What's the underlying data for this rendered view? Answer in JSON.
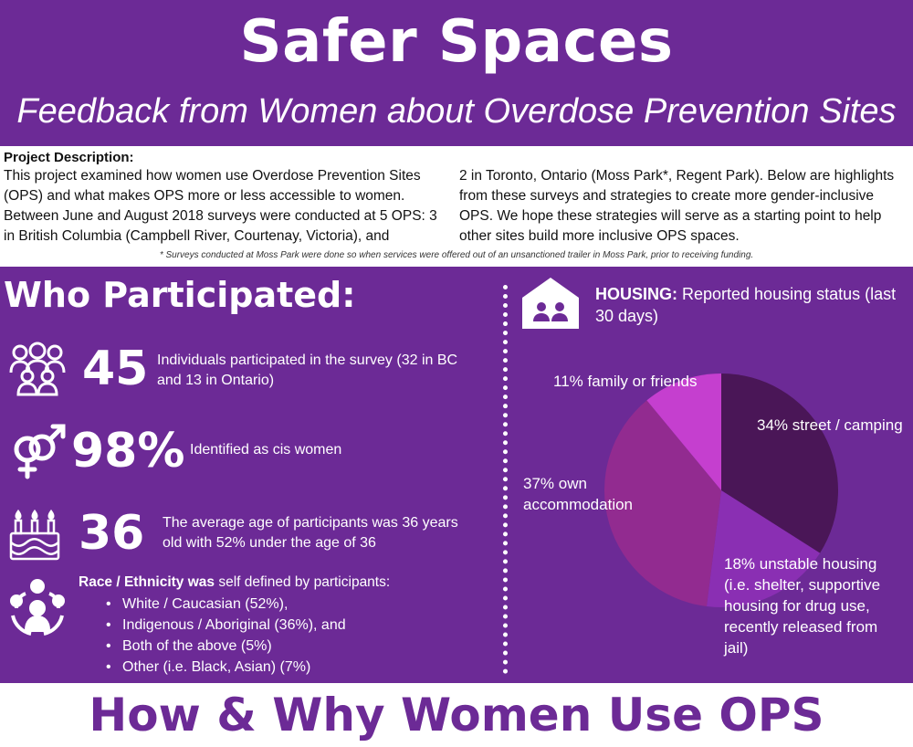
{
  "header": {
    "title": "Safer Spaces",
    "subtitle": "Feedback from Women about Overdose Prevention Sites"
  },
  "description": {
    "heading": "Project Description:",
    "left_text": "This project examined how women use Overdose Prevention Sites (OPS) and what makes OPS more or less accessible to women. Between June and August 2018 surveys were conducted at 5 OPS: 3 in British Columbia (Campbell River, Courtenay, Victoria), and",
    "right_text": "2 in Toronto, Ontario (Moss Park*, Regent Park). Below are highlights from these surveys and strategies to create more gender-inclusive OPS.  We hope these strategies will serve as a starting point to help other sites build more inclusive OPS spaces.",
    "footnote": "* Surveys conducted at Moss Park were done so when services were offered out of an unsanctioned trailer in Moss Park, prior to receiving funding."
  },
  "who": {
    "title": "Who Participated:",
    "stats": [
      {
        "number": "45",
        "text": "Individuals participated in the survey (32 in BC and 13 in Ontario)",
        "icon": "people-group-icon"
      },
      {
        "number": "98%",
        "text": "Identified as cis women",
        "icon": "gender-symbol-icon"
      },
      {
        "number": "36",
        "text": "The average age of participants was 36 years old with 52% under the age of 36",
        "icon": "birthday-cake-icon"
      }
    ],
    "race_heading_bold": "Race / Ethnicity was",
    "race_heading_rest": " self defined by participants:",
    "race_items": [
      "White / Caucasian (52%),",
      "Indigenous / Aboriginal (36%), and",
      "Both of the above (5%)",
      "Other (i.e. Black, Asian) (7%)"
    ],
    "race_icon": "community-circle-icon"
  },
  "housing": {
    "title_bold": "HOUSING:",
    "title_rest": " Reported housing status (last 30 days)",
    "icon": "house-people-icon"
  },
  "chart_data": {
    "type": "pie",
    "title": "",
    "slices": [
      {
        "label": "34% street / camping",
        "value": 34,
        "color": "#4a1657"
      },
      {
        "label": "18% unstable housing (i.e. shelter, supportive housing for drug use, recently released from jail)",
        "value": 18,
        "color": "#8a2fb3"
      },
      {
        "label": "37% own accommodation",
        "value": 37,
        "color": "#922b90"
      },
      {
        "label": "11% family or friends",
        "value": 11,
        "color": "#c53fcf"
      }
    ]
  },
  "footer": {
    "title": "How & Why Women Use OPS"
  },
  "colors": {
    "brand_purple": "#6c2a96",
    "white": "#ffffff"
  }
}
